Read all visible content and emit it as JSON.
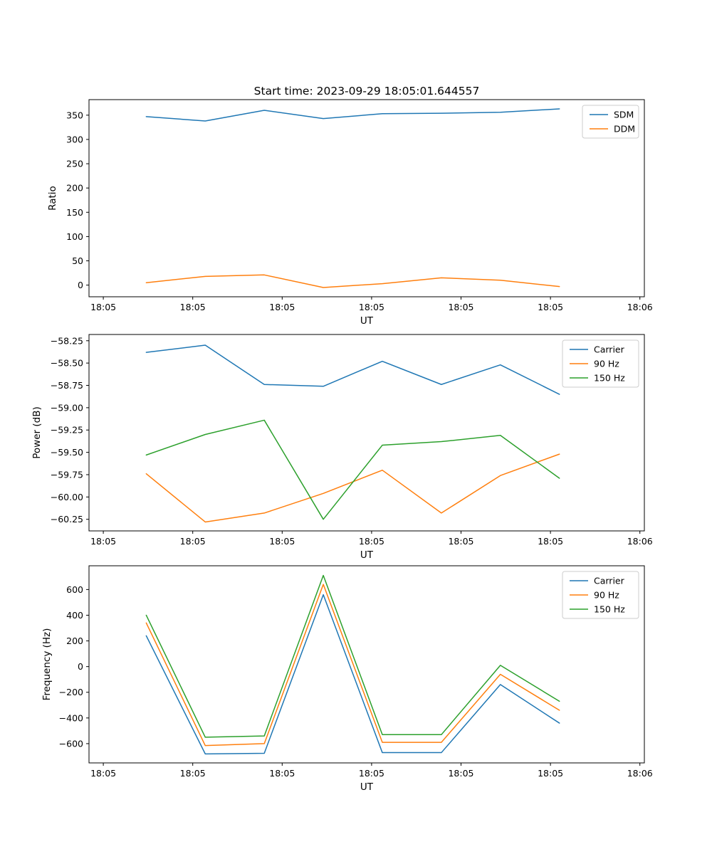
{
  "figure": {
    "title": "Start time: 2023-09-29 18:05:01.644557",
    "background": "#ffffff"
  },
  "chart_data": [
    {
      "type": "line",
      "title": "",
      "xlabel": "UT",
      "ylabel": "Ratio",
      "grid": false,
      "legend_position": "upper right",
      "x": [
        4.8,
        11.4,
        18.0,
        24.6,
        31.2,
        37.8,
        44.4,
        51.0
      ],
      "xlim": [
        -1.6,
        60.5
      ],
      "ylim": [
        -24,
        382
      ],
      "xticks": {
        "values": [
          0,
          10,
          20,
          30,
          40,
          50,
          60
        ],
        "labels": [
          "18:05",
          "18:05",
          "18:05",
          "18:05",
          "18:05",
          "18:05",
          "18:06"
        ]
      },
      "yticks": {
        "values": [
          0,
          50,
          100,
          150,
          200,
          250,
          300,
          350
        ],
        "labels": [
          "0",
          "50",
          "100",
          "150",
          "200",
          "250",
          "300",
          "350"
        ]
      },
      "series": [
        {
          "name": "SDM",
          "color": "#1f77b4",
          "values": [
            347,
            338,
            360,
            343,
            353,
            354,
            356,
            363
          ]
        },
        {
          "name": "DDM",
          "color": "#ff7f0e",
          "values": [
            5,
            18,
            21,
            -5,
            3,
            15,
            10,
            -3
          ]
        }
      ]
    },
    {
      "type": "line",
      "title": "",
      "xlabel": "UT",
      "ylabel": "Power (dB)",
      "grid": false,
      "legend_position": "upper right",
      "x": [
        4.8,
        11.4,
        18.0,
        24.6,
        31.2,
        37.8,
        44.4,
        51.0
      ],
      "xlim": [
        -1.6,
        60.5
      ],
      "ylim": [
        -60.38,
        -58.18
      ],
      "xticks": {
        "values": [
          0,
          10,
          20,
          30,
          40,
          50,
          60
        ],
        "labels": [
          "18:05",
          "18:05",
          "18:05",
          "18:05",
          "18:05",
          "18:05",
          "18:06"
        ]
      },
      "yticks": {
        "values": [
          -58.25,
          -58.5,
          -58.75,
          -59.0,
          -59.25,
          -59.5,
          -59.75,
          -60.0,
          -60.25
        ],
        "labels": [
          "−58.25",
          "−58.50",
          "−58.75",
          "−59.00",
          "−59.25",
          "−59.50",
          "−59.75",
          "−60.00",
          "−60.25"
        ]
      },
      "series": [
        {
          "name": "Carrier",
          "color": "#1f77b4",
          "values": [
            -58.38,
            -58.3,
            -58.74,
            -58.76,
            -58.48,
            -58.74,
            -58.52,
            -58.85
          ]
        },
        {
          "name": "90 Hz",
          "color": "#ff7f0e",
          "values": [
            -59.74,
            -60.28,
            -60.18,
            -59.96,
            -59.7,
            -60.18,
            -59.76,
            -59.52
          ]
        },
        {
          "name": "150 Hz",
          "color": "#2ca02c",
          "values": [
            -59.53,
            -59.3,
            -59.14,
            -60.25,
            -59.42,
            -59.38,
            -59.31,
            -59.79
          ]
        }
      ]
    },
    {
      "type": "line",
      "title": "",
      "xlabel": "UT",
      "ylabel": "Frequency (Hz)",
      "grid": false,
      "legend_position": "upper right",
      "x": [
        4.8,
        11.4,
        18.0,
        24.6,
        31.2,
        37.8,
        44.4,
        51.0
      ],
      "xlim": [
        -1.6,
        60.5
      ],
      "ylim": [
        -750,
        785
      ],
      "xticks": {
        "values": [
          0,
          10,
          20,
          30,
          40,
          50,
          60
        ],
        "labels": [
          "18:05",
          "18:05",
          "18:05",
          "18:05",
          "18:05",
          "18:05",
          "18:06"
        ]
      },
      "yticks": {
        "values": [
          -600,
          -400,
          -200,
          0,
          200,
          400,
          600
        ],
        "labels": [
          "−600",
          "−400",
          "−200",
          "0",
          "200",
          "400",
          "600"
        ]
      },
      "series": [
        {
          "name": "Carrier",
          "color": "#1f77b4",
          "values": [
            240,
            -680,
            -675,
            560,
            -670,
            -670,
            -140,
            -440
          ]
        },
        {
          "name": "90 Hz",
          "color": "#ff7f0e",
          "values": [
            340,
            -615,
            -600,
            640,
            -590,
            -590,
            -60,
            -340
          ]
        },
        {
          "name": "150 Hz",
          "color": "#2ca02c",
          "values": [
            400,
            -550,
            -540,
            710,
            -530,
            -530,
            10,
            -270
          ]
        }
      ]
    }
  ]
}
